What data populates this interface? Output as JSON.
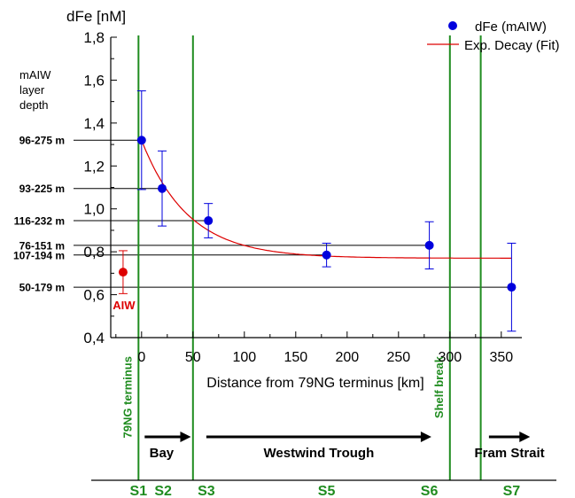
{
  "chart_data": {
    "type": "scatter",
    "ylabel": "dFe [nM]",
    "xlabel": "Distance from 79NG terminus [km]",
    "xlim": [
      -30,
      370
    ],
    "ylim": [
      0.4,
      1.8
    ],
    "x_ticks": [
      0,
      50,
      100,
      150,
      200,
      250,
      300,
      350
    ],
    "y_ticks": [
      "0,4",
      "0,6",
      "0,8",
      "1,0",
      "1,2",
      "1,4",
      "1,6",
      "1,8"
    ],
    "y_tick_values": [
      0.4,
      0.6,
      0.8,
      1.0,
      1.2,
      1.4,
      1.6,
      1.8
    ],
    "legend_position": "top-right",
    "series": [
      {
        "name": "dFe (mAIW)",
        "color": "#0000dd",
        "points": [
          {
            "x": 0,
            "y": 1.32,
            "err": 0.23
          },
          {
            "x": 20,
            "y": 1.095,
            "err": 0.175
          },
          {
            "x": 65,
            "y": 0.945,
            "err": 0.08
          },
          {
            "x": 180,
            "y": 0.785,
            "err": 0.055
          },
          {
            "x": 280,
            "y": 0.83,
            "err": 0.11
          },
          {
            "x": 360,
            "y": 0.635,
            "err": 0.205
          }
        ]
      },
      {
        "name": "Exp. Decay (Fit)",
        "color": "#dd0000",
        "fit": {
          "x_start": 0,
          "x_end": 360,
          "y0": 0.77,
          "amplitude": 0.55,
          "decay_km": 45
        }
      }
    ],
    "aiw_point": {
      "label": "AIW",
      "x": -18,
      "y": 0.705,
      "err": 0.1,
      "color": "#dd0000"
    },
    "layer_depth_title": [
      "mAIW",
      "layer",
      "depth"
    ],
    "layer_depths": [
      {
        "label": "96-275 m",
        "y": 1.32,
        "x_end": 0
      },
      {
        "label": "93-225 m",
        "y": 1.095,
        "x_end": 20
      },
      {
        "label": "116-232 m",
        "y": 0.945,
        "x_end": 65
      },
      {
        "label": "76-151 m",
        "y": 0.83,
        "x_end": 280
      },
      {
        "label": "107-194 m",
        "y": 0.785,
        "x_end": 180
      },
      {
        "label": "50-179 m",
        "y": 0.635,
        "x_end": 360
      }
    ],
    "vertical_markers": [
      {
        "x": -3,
        "label": "79NG terminus"
      },
      {
        "x": 50,
        "label": ""
      },
      {
        "x": 300,
        "label": "Shelf break"
      },
      {
        "x": 330,
        "label": ""
      }
    ],
    "regions": [
      {
        "label": "Bay",
        "x_start": 3,
        "x_end": 48
      },
      {
        "label": "Westwind Trough",
        "x_start": 63,
        "x_end": 282
      },
      {
        "label": "Fram Strait",
        "x_start": 338,
        "x_end": 378
      }
    ],
    "stations": [
      {
        "label": "S1",
        "x": -3
      },
      {
        "label": "S2",
        "x": 21
      },
      {
        "label": "S3",
        "x": 63
      },
      {
        "label": "S5",
        "x": 180
      },
      {
        "label": "S6",
        "x": 280
      },
      {
        "label": "S7",
        "x": 360
      }
    ],
    "marker_color": "#1f8c1f"
  }
}
